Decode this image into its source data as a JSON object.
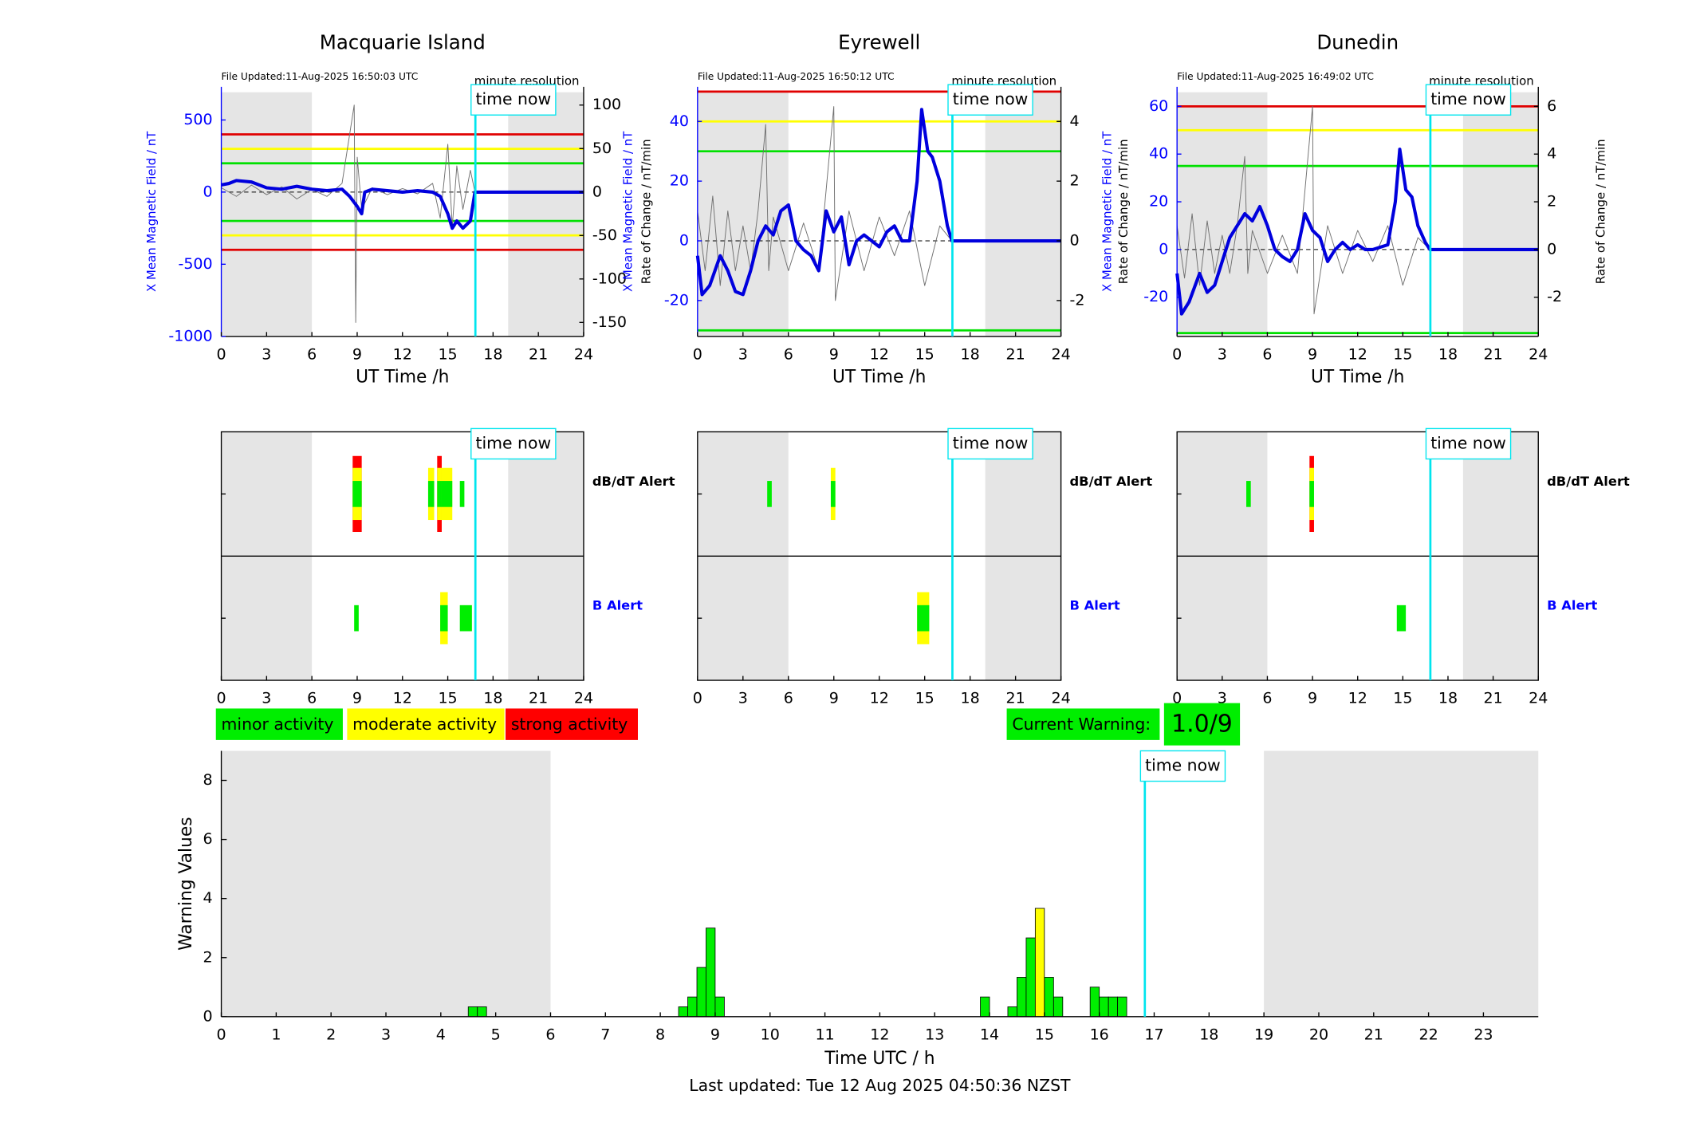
{
  "chart_data": [
    {
      "type": "line",
      "title": "Macquarie Island",
      "file_updated": "File Updated:11-Aug-2025 16:50:03 UTC",
      "resolution": "minute resolution",
      "time_now": 16.83,
      "time_now_label": "time now",
      "xlabel": "UT Time /h",
      "ylabel": "X Mean Magnetic Field / nT",
      "y2label": "Rate of Change / nT/min",
      "xlim": [
        0,
        24
      ],
      "xticks": [
        0,
        3,
        6,
        9,
        12,
        15,
        18,
        21,
        24
      ],
      "ylim": [
        -1000,
        730
      ],
      "yticks": [
        -1000,
        -500,
        0,
        500
      ],
      "y2lim": [
        -166,
        121
      ],
      "y2ticks": [
        -150,
        -100,
        -50,
        0,
        50,
        100
      ],
      "shade": [
        [
          0,
          6
        ],
        [
          19,
          24
        ]
      ],
      "thresholds": [
        {
          "value": 400,
          "color": "#e00000"
        },
        {
          "value": 300,
          "color": "#ffff00"
        },
        {
          "value": 200,
          "color": "#00e000"
        },
        {
          "value": -200,
          "color": "#00e000"
        },
        {
          "value": -300,
          "color": "#ffff00"
        },
        {
          "value": -400,
          "color": "#e00000"
        }
      ],
      "series": [
        {
          "color": "#707070",
          "axis": "y2",
          "x": [
            0,
            1,
            2,
            3,
            4,
            5,
            6,
            7,
            8,
            8.8,
            8.9,
            9.0,
            9.3,
            10,
            11,
            12,
            13,
            14,
            14.5,
            15,
            15.3,
            15.6,
            16,
            16.5,
            16.8
          ],
          "values": [
            5,
            -5,
            8,
            -3,
            6,
            -8,
            3,
            -5,
            10,
            100,
            -150,
            40,
            -20,
            5,
            -3,
            4,
            -2,
            10,
            -30,
            55,
            -40,
            30,
            -20,
            25,
            0
          ]
        },
        {
          "color": "#0000dd",
          "axis": "y",
          "x": [
            0,
            0.5,
            1,
            2,
            3,
            4,
            5,
            6,
            7,
            8,
            8.5,
            9,
            9.3,
            9.5,
            10,
            11,
            12,
            13,
            14,
            14.5,
            15,
            15.3,
            15.6,
            16,
            16.5,
            16.8,
            17,
            24
          ],
          "values": [
            50,
            60,
            80,
            70,
            30,
            20,
            40,
            20,
            10,
            20,
            -30,
            -100,
            -150,
            0,
            20,
            10,
            0,
            10,
            0,
            -30,
            -150,
            -250,
            -200,
            -250,
            -200,
            0,
            0,
            0
          ]
        }
      ]
    },
    {
      "type": "line",
      "title": "Eyrewell",
      "file_updated": "File Updated:11-Aug-2025 16:50:12 UTC",
      "resolution": "minute resolution",
      "time_now": 16.83,
      "time_now_label": "time now",
      "xlabel": "UT Time /h",
      "ylabel": "X Mean Magnetic Field / nT",
      "y2label": "Rate of Change / nT/min",
      "xlim": [
        0,
        24
      ],
      "xticks": [
        0,
        3,
        6,
        9,
        12,
        15,
        18,
        21,
        24
      ],
      "ylim": [
        -32,
        51.6
      ],
      "yticks": [
        -20,
        0,
        20,
        40
      ],
      "y2lim": [
        -3.2,
        5.16
      ],
      "y2ticks": [
        -2,
        0,
        2,
        4
      ],
      "shade": [
        [
          0,
          6
        ],
        [
          19,
          24
        ]
      ],
      "thresholds": [
        {
          "value": 50,
          "color": "#e00000"
        },
        {
          "value": 40,
          "color": "#ffff00"
        },
        {
          "value": 30,
          "color": "#00e000"
        },
        {
          "value": -30,
          "color": "#00e000"
        }
      ],
      "series": [
        {
          "color": "#707070",
          "axis": "y2",
          "x": [
            0,
            0.5,
            1,
            1.5,
            2,
            2.5,
            3,
            3.5,
            4,
            4.5,
            4.7,
            5,
            6,
            7,
            8,
            9,
            9.1,
            10,
            11,
            12,
            13,
            14,
            15,
            16,
            16.8
          ],
          "values": [
            1,
            -1,
            1.5,
            -1.5,
            1,
            -1,
            0.5,
            -1,
            1,
            3.9,
            -1,
            0.8,
            -1,
            0.6,
            -1,
            4.5,
            -2,
            1,
            -1,
            0.8,
            -0.5,
            1,
            -1.5,
            0.5,
            0
          ]
        },
        {
          "color": "#0000dd",
          "axis": "y",
          "x": [
            0,
            0.3,
            0.8,
            1.5,
            2,
            2.5,
            3,
            3.5,
            4,
            4.5,
            5,
            5.5,
            6,
            6.5,
            7,
            7.5,
            8,
            8.5,
            9,
            9.5,
            10,
            10.5,
            11,
            11.5,
            12,
            12.5,
            13,
            13.5,
            14,
            14.5,
            14.8,
            15.2,
            15.5,
            16,
            16.5,
            16.8,
            24
          ],
          "values": [
            -5,
            -18,
            -15,
            -5,
            -10,
            -17,
            -18,
            -10,
            0,
            5,
            2,
            10,
            12,
            0,
            -3,
            -5,
            -10,
            10,
            3,
            8,
            -8,
            0,
            2,
            0,
            -2,
            3,
            5,
            0,
            0,
            20,
            44,
            30,
            28,
            20,
            5,
            0,
            0
          ]
        }
      ]
    },
    {
      "type": "line",
      "title": "Dunedin",
      "file_updated": "File Updated:11-Aug-2025 16:49:02 UTC",
      "resolution": "minute resolution",
      "time_now": 16.83,
      "time_now_label": "time now",
      "xlabel": "UT Time /h",
      "ylabel": "X Mean Magnetic Field / nT",
      "y2label": "Rate of Change / nT/min",
      "xlim": [
        0,
        24
      ],
      "xticks": [
        0,
        3,
        6,
        9,
        12,
        15,
        18,
        21,
        24
      ],
      "ylim": [
        -36.4,
        68.2
      ],
      "yticks": [
        -20,
        0,
        20,
        40,
        60
      ],
      "y2lim": [
        -3.64,
        6.82
      ],
      "y2ticks": [
        -2,
        0,
        2,
        4,
        6
      ],
      "shade": [
        [
          0,
          6
        ],
        [
          19,
          24
        ]
      ],
      "thresholds": [
        {
          "value": 60,
          "color": "#e00000"
        },
        {
          "value": 50,
          "color": "#ffff00"
        },
        {
          "value": 35,
          "color": "#00e000"
        },
        {
          "value": -35,
          "color": "#00e000"
        }
      ],
      "series": [
        {
          "color": "#707070",
          "axis": "y2",
          "x": [
            0,
            0.5,
            1,
            1.5,
            2,
            2.5,
            3,
            3.5,
            4,
            4.5,
            4.7,
            5,
            6,
            7,
            8,
            9,
            9.1,
            10,
            11,
            12,
            13,
            14,
            15,
            16,
            16.8
          ],
          "values": [
            1,
            -1.2,
            1.5,
            -1.5,
            1.2,
            -1,
            0.6,
            -1,
            1,
            3.9,
            -1,
            0.8,
            -1,
            0.6,
            -1,
            6,
            -2.7,
            1,
            -1,
            0.8,
            -0.5,
            1,
            -1.5,
            0.5,
            0
          ]
        },
        {
          "color": "#0000dd",
          "axis": "y",
          "x": [
            0,
            0.3,
            0.8,
            1.5,
            2,
            2.5,
            3,
            3.5,
            4,
            4.5,
            5,
            5.5,
            6,
            6.5,
            7,
            7.5,
            8,
            8.5,
            9,
            9.5,
            10,
            10.5,
            11,
            11.5,
            12,
            12.5,
            13,
            14,
            14.5,
            14.8,
            15.2,
            15.6,
            16,
            16.5,
            16.8,
            24
          ],
          "values": [
            -10,
            -27,
            -22,
            -10,
            -18,
            -15,
            -5,
            5,
            10,
            15,
            12,
            18,
            10,
            0,
            -3,
            -5,
            0,
            15,
            8,
            5,
            -5,
            0,
            3,
            0,
            2,
            0,
            0,
            2,
            20,
            42,
            25,
            22,
            10,
            3,
            0,
            0
          ]
        }
      ]
    },
    {
      "type": "timeline",
      "time_now": 16.83,
      "time_now_label": "time now",
      "xlim": [
        0,
        24
      ],
      "xticks": [
        0,
        3,
        6,
        9,
        12,
        15,
        18,
        21,
        24
      ],
      "shade": [
        [
          0,
          6
        ],
        [
          19,
          24
        ]
      ],
      "colors": [
        "#00ee00",
        "#ffff00",
        "#ff0000"
      ],
      "lanes": [
        {
          "name": "dB/dT Alert",
          "color": "#000000",
          "start": [
            8.7,
            13.7,
            14.3,
            14.6,
            15.8
          ],
          "end": [
            9.3,
            14.1,
            14.6,
            15.3,
            16.1
          ],
          "levels": [
            3,
            2,
            3,
            2,
            1
          ]
        },
        {
          "name": "B Alert",
          "color": "#0000ff",
          "start": [
            8.8,
            14.5,
            15.8
          ],
          "end": [
            9.1,
            15.0,
            16.6
          ],
          "levels": [
            1,
            2,
            1
          ]
        }
      ]
    },
    {
      "type": "timeline",
      "time_now": 16.83,
      "time_now_label": "time now",
      "xlim": [
        0,
        24
      ],
      "xticks": [
        0,
        3,
        6,
        9,
        12,
        15,
        18,
        21,
        24
      ],
      "shade": [
        [
          0,
          6
        ],
        [
          19,
          24
        ]
      ],
      "colors": [
        "#00ee00",
        "#ffff00",
        "#ff0000"
      ],
      "lanes": [
        {
          "name": "dB/dT Alert",
          "color": "#000000",
          "start": [
            4.6,
            8.8
          ],
          "end": [
            4.9,
            9.1
          ],
          "levels": [
            1,
            2
          ]
        },
        {
          "name": "B Alert",
          "color": "#0000ff",
          "start": [
            14.5
          ],
          "end": [
            15.3
          ],
          "levels": [
            2
          ]
        }
      ]
    },
    {
      "type": "timeline",
      "time_now": 16.83,
      "time_now_label": "time now",
      "xlim": [
        0,
        24
      ],
      "xticks": [
        0,
        3,
        6,
        9,
        12,
        15,
        18,
        21,
        24
      ],
      "shade": [
        [
          0,
          6
        ],
        [
          19,
          24
        ]
      ],
      "colors": [
        "#00ee00",
        "#ffff00",
        "#ff0000"
      ],
      "lanes": [
        {
          "name": "dB/dT Alert",
          "color": "#000000",
          "start": [
            4.6,
            8.8
          ],
          "end": [
            4.9,
            9.1
          ],
          "levels": [
            1,
            3
          ]
        },
        {
          "name": "B Alert",
          "color": "#0000ff",
          "start": [
            14.6
          ],
          "end": [
            15.2
          ],
          "levels": [
            1
          ]
        }
      ]
    },
    {
      "type": "bar",
      "xlabel": "Time UTC / h",
      "ylabel": "Warning Values",
      "xlim": [
        0,
        24
      ],
      "xticks": [
        0,
        1,
        2,
        3,
        4,
        5,
        6,
        7,
        8,
        9,
        10,
        11,
        12,
        13,
        14,
        15,
        16,
        17,
        18,
        19,
        20,
        21,
        22,
        23
      ],
      "ylim": [
        0,
        9
      ],
      "yticks": [
        0,
        2,
        4,
        6,
        8
      ],
      "shade": [
        [
          0,
          6
        ],
        [
          19,
          24
        ]
      ],
      "time_now": 16.83,
      "time_now_label": "time now",
      "bar_width": 0.1667,
      "x": [
        4.5,
        4.667,
        8.333,
        8.5,
        8.667,
        8.833,
        9.0,
        13.833,
        14.333,
        14.5,
        14.667,
        14.833,
        15.0,
        15.167,
        15.833,
        16.0,
        16.167,
        16.333
      ],
      "values": [
        0.333,
        0.333,
        0.333,
        0.667,
        1.667,
        3,
        0.667,
        0.667,
        0.333,
        1.333,
        2.667,
        3.667,
        1.333,
        0.667,
        1,
        0.667,
        0.667,
        0.667
      ],
      "colors": [
        "#00ee00",
        "#00ee00",
        "#00ee00",
        "#00ee00",
        "#00ee00",
        "#00ee00",
        "#00ee00",
        "#00ee00",
        "#00ee00",
        "#00ee00",
        "#00ee00",
        "#ffff00",
        "#00ee00",
        "#00ee00",
        "#00ee00",
        "#00ee00",
        "#00ee00",
        "#00ee00"
      ]
    }
  ],
  "legend": [
    {
      "label": "minor activity",
      "color": "#00ee00"
    },
    {
      "label": "moderate activity",
      "color": "#ffff00"
    },
    {
      "label": "strong activity",
      "color": "#ff0000"
    }
  ],
  "current_warning": {
    "label": "Current Warning:",
    "value": "1.0/9",
    "color": "#00ee00"
  },
  "last_updated": "Last updated: Tue 12 Aug 2025 04:50:36 NZST"
}
